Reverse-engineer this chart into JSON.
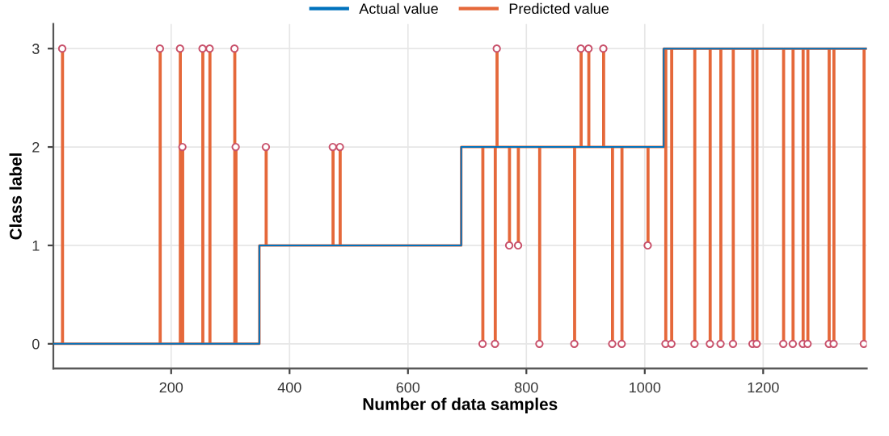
{
  "chart_data": {
    "type": "step",
    "xlabel": "Number of data samples",
    "ylabel": "Class label",
    "xlim": [
      1,
      1375
    ],
    "ylim": [
      -0.25,
      3.25
    ],
    "xticks": [
      200,
      400,
      600,
      800,
      1000,
      1200
    ],
    "yticks": [
      0,
      1,
      2,
      3
    ],
    "grid": true,
    "legend": "top",
    "line_style": "solid",
    "series": [
      {
        "name": "Actual value",
        "color": "#0072bd",
        "x": [
          1,
          349,
          690,
          1032,
          1375
        ],
        "values": [
          0,
          1,
          2,
          3,
          3
        ]
      },
      {
        "name": "Predicted value",
        "color": "#e5683a",
        "x": [
          1,
          16,
          17,
          181,
          182,
          215,
          216,
          219,
          220,
          253,
          254,
          265,
          266,
          307,
          308,
          309,
          310,
          349,
          360,
          361,
          473,
          474,
          485,
          486,
          690,
          726,
          727,
          747,
          748,
          750,
          751,
          771,
          772,
          786,
          787,
          822,
          823,
          881,
          882,
          892,
          893,
          905,
          906,
          930,
          931,
          945,
          946,
          961,
          962,
          1005,
          1006,
          1032,
          1035,
          1036,
          1045,
          1046,
          1084,
          1085,
          1110,
          1111,
          1128,
          1129,
          1149,
          1150,
          1182,
          1183,
          1189,
          1190,
          1234,
          1235,
          1250,
          1251,
          1267,
          1268,
          1275,
          1276,
          1311,
          1312,
          1319,
          1320,
          1370,
          1371,
          1375
        ],
        "values": [
          0,
          3,
          0,
          3,
          0,
          3,
          0,
          2,
          0,
          3,
          0,
          3,
          0,
          3,
          0,
          2,
          0,
          1,
          2,
          1,
          2,
          1,
          2,
          1,
          2,
          0,
          2,
          0,
          2,
          3,
          2,
          1,
          2,
          1,
          2,
          0,
          2,
          0,
          2,
          3,
          2,
          3,
          2,
          3,
          2,
          0,
          2,
          0,
          2,
          1,
          2,
          3,
          0,
          3,
          0,
          3,
          0,
          3,
          0,
          3,
          0,
          3,
          0,
          3,
          0,
          3,
          0,
          3,
          0,
          3,
          0,
          3,
          0,
          3,
          0,
          3,
          0,
          3,
          0,
          3,
          0,
          3,
          3
        ]
      },
      {
        "type": "scatter",
        "marker": "circle",
        "color": "#c8506a",
        "x": [
          16,
          181,
          215,
          219,
          253,
          265,
          307,
          309,
          360,
          473,
          485,
          726,
          747,
          750,
          771,
          786,
          822,
          881,
          892,
          905,
          930,
          945,
          961,
          1005,
          1035,
          1045,
          1084,
          1110,
          1128,
          1149,
          1182,
          1189,
          1234,
          1250,
          1267,
          1275,
          1311,
          1319,
          1370
        ],
        "values": [
          3,
          3,
          3,
          2,
          3,
          3,
          3,
          2,
          2,
          2,
          2,
          0,
          0,
          3,
          1,
          1,
          0,
          0,
          3,
          3,
          3,
          0,
          0,
          1,
          0,
          0,
          0,
          0,
          0,
          0,
          0,
          0,
          0,
          0,
          0,
          0,
          0,
          0,
          0
        ]
      }
    ]
  }
}
